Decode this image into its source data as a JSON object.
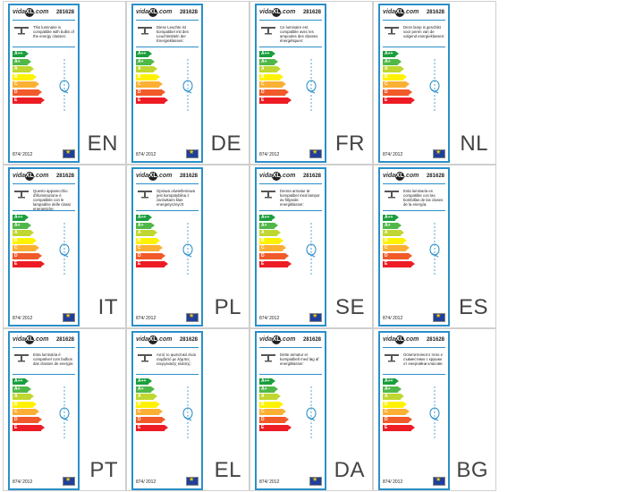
{
  "brand": {
    "logo_left": "vida",
    "logo_mid": "XL",
    "logo_right": ".com"
  },
  "product_code": "281628",
  "regulation": "874/ 2012",
  "energy_classes": [
    {
      "label": "A++",
      "color": "#1a9e3c"
    },
    {
      "label": "A+",
      "color": "#50b848"
    },
    {
      "label": "A",
      "color": "#bfd730"
    },
    {
      "label": "B",
      "color": "#fff200"
    },
    {
      "label": "C",
      "color": "#fbb034"
    },
    {
      "label": "D",
      "color": "#f15a29"
    },
    {
      "label": "E",
      "color": "#ed1c24"
    }
  ],
  "labels": [
    {
      "lang": "EN",
      "text": "This luminaire is compatible with bulbs of the energy classes:"
    },
    {
      "lang": "DE",
      "text": "Diese Leuchte ist kompatibel mit den Leuchtmitteln der Energieklassen:"
    },
    {
      "lang": "FR",
      "text": "Ce luminaire est compatible avec les ampoules des classes énergétiques:"
    },
    {
      "lang": "NL",
      "text": "Deze lamp is geschikt voor peren van de volgend energieklassen:"
    },
    {
      "lang": "IT",
      "text": "Questo apparecchio d'illuminazione è compatibile con le lampadine delle classi energetiche:"
    },
    {
      "lang": "PL",
      "text": "Oprawa oświetleniowa jest kompatybilna z żarówkami klas energetycznych:"
    },
    {
      "lang": "SE",
      "text": "Denna armatur är kompatibel med lampor av följande energiklasser:"
    },
    {
      "lang": "ES",
      "text": "Esta luminaria es compatible con las bombillas de las clases de la energía:"
    },
    {
      "lang": "PT",
      "text": "Esta luminária é compatível com bulbos das classes de energia:"
    },
    {
      "lang": "EL",
      "text": "Αυτό το φωτιστικό είναι συμβατό με λάμπες ενεργειακής κλάσης:"
    },
    {
      "lang": "DA",
      "text": "Dette armatur er kompatibelt med løg af energiklasser:"
    },
    {
      "lang": "BG",
      "text": "Осветителното тяло е съвместимо с крушки от енергийни класове:"
    }
  ]
}
